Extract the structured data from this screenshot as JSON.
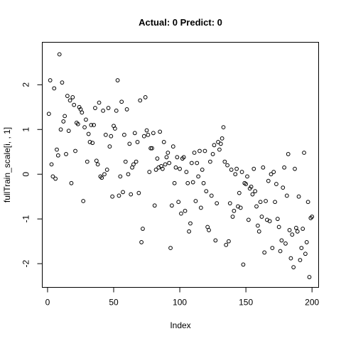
{
  "chart_data": {
    "type": "scatter",
    "title": "Actual: 0 Predict: 0",
    "xlabel": "Index",
    "ylabel": "fullTrain_scale[i, , 1]",
    "xlim": [
      -4,
      205
    ],
    "ylim": [
      -2.53,
      2.95
    ],
    "xticks": [
      0,
      50,
      100,
      150,
      200
    ],
    "yticks": [
      -2,
      -1,
      0,
      1,
      2
    ],
    "xtick_labels": [
      "0",
      "50",
      "100",
      "150",
      "200"
    ],
    "ytick_labels": [
      "-2",
      "-1",
      "0",
      "1",
      "2"
    ],
    "grid": false,
    "legend": "none",
    "marker": "open-circle",
    "points": [
      [
        1,
        1.35
      ],
      [
        2,
        2.1
      ],
      [
        3,
        0.22
      ],
      [
        4,
        -0.05
      ],
      [
        5,
        1.92
      ],
      [
        6,
        -0.1
      ],
      [
        7,
        0.55
      ],
      [
        8,
        0.42
      ],
      [
        9,
        2.68
      ],
      [
        10,
        1.0
      ],
      [
        11,
        2.05
      ],
      [
        12,
        1.18
      ],
      [
        13,
        1.3
      ],
      [
        14,
        0.45
      ],
      [
        15,
        1.75
      ],
      [
        16,
        0.97
      ],
      [
        17,
        1.65
      ],
      [
        18,
        -0.2
      ],
      [
        19,
        1.72
      ],
      [
        20,
        1.55
      ],
      [
        21,
        0.52
      ],
      [
        22,
        1.15
      ],
      [
        23,
        1.12
      ],
      [
        24,
        1.5
      ],
      [
        25,
        1.45
      ],
      [
        26,
        1.38
      ],
      [
        27,
        -0.6
      ],
      [
        28,
        1.05
      ],
      [
        29,
        1.22
      ],
      [
        30,
        0.28
      ],
      [
        31,
        0.9
      ],
      [
        32,
        0.72
      ],
      [
        33,
        1.1
      ],
      [
        34,
        0.7
      ],
      [
        35,
        1.1
      ],
      [
        36,
        1.48
      ],
      [
        37,
        0.3
      ],
      [
        38,
        0.22
      ],
      [
        39,
        1.6
      ],
      [
        40,
        -0.05
      ],
      [
        41,
        -0.08
      ],
      [
        42,
        1.42
      ],
      [
        43,
        0.0
      ],
      [
        44,
        0.88
      ],
      [
        45,
        0.1
      ],
      [
        46,
        1.48
      ],
      [
        47,
        0.62
      ],
      [
        48,
        0.85
      ],
      [
        49,
        -0.5
      ],
      [
        50,
        1.08
      ],
      [
        51,
        1.02
      ],
      [
        52,
        1.42
      ],
      [
        53,
        2.1
      ],
      [
        54,
        -0.48
      ],
      [
        55,
        -0.05
      ],
      [
        56,
        1.62
      ],
      [
        57,
        -0.4
      ],
      [
        58,
        0.88
      ],
      [
        59,
        0.28
      ],
      [
        60,
        1.45
      ],
      [
        61,
        0.0
      ],
      [
        62,
        0.68
      ],
      [
        63,
        -0.45
      ],
      [
        64,
        0.15
      ],
      [
        65,
        0.22
      ],
      [
        66,
        0.92
      ],
      [
        67,
        0.28
      ],
      [
        68,
        0.72
      ],
      [
        69,
        -0.42
      ],
      [
        70,
        1.65
      ],
      [
        71,
        -1.52
      ],
      [
        72,
        -1.22
      ],
      [
        73,
        0.85
      ],
      [
        74,
        1.72
      ],
      [
        75,
        0.98
      ],
      [
        76,
        0.88
      ],
      [
        77,
        0.05
      ],
      [
        78,
        0.58
      ],
      [
        79,
        0.58
      ],
      [
        80,
        0.92
      ],
      [
        81,
        -0.7
      ],
      [
        82,
        0.1
      ],
      [
        83,
        0.35
      ],
      [
        84,
        0.15
      ],
      [
        85,
        0.95
      ],
      [
        86,
        0.18
      ],
      [
        87,
        0.12
      ],
      [
        88,
        0.72
      ],
      [
        89,
        0.22
      ],
      [
        90,
        0.38
      ],
      [
        91,
        0.48
      ],
      [
        92,
        0.25
      ],
      [
        93,
        -1.65
      ],
      [
        94,
        -0.7
      ],
      [
        95,
        0.62
      ],
      [
        96,
        -0.2
      ],
      [
        97,
        0.15
      ],
      [
        98,
        0.38
      ],
      [
        99,
        -0.62
      ],
      [
        100,
        0.12
      ],
      [
        101,
        -0.88
      ],
      [
        102,
        0.35
      ],
      [
        103,
        0.38
      ],
      [
        104,
        -0.82
      ],
      [
        105,
        0.05
      ],
      [
        106,
        -0.2
      ],
      [
        107,
        -1.28
      ],
      [
        108,
        -1.1
      ],
      [
        109,
        0.25
      ],
      [
        110,
        -0.18
      ],
      [
        111,
        0.48
      ],
      [
        112,
        -0.6
      ],
      [
        113,
        0.25
      ],
      [
        114,
        -0.05
      ],
      [
        115,
        0.52
      ],
      [
        116,
        -0.75
      ],
      [
        117,
        0.1
      ],
      [
        118,
        -0.2
      ],
      [
        119,
        0.52
      ],
      [
        120,
        -0.38
      ],
      [
        121,
        -1.18
      ],
      [
        122,
        -1.25
      ],
      [
        123,
        0.28
      ],
      [
        124,
        -0.48
      ],
      [
        125,
        0.45
      ],
      [
        126,
        0.65
      ],
      [
        127,
        -1.48
      ],
      [
        128,
        -0.65
      ],
      [
        129,
        0.72
      ],
      [
        130,
        0.55
      ],
      [
        131,
        0.68
      ],
      [
        132,
        0.8
      ],
      [
        133,
        1.05
      ],
      [
        134,
        0.28
      ],
      [
        135,
        -1.58
      ],
      [
        136,
        0.2
      ],
      [
        137,
        -1.5
      ],
      [
        138,
        -0.65
      ],
      [
        139,
        0.1
      ],
      [
        140,
        -0.95
      ],
      [
        141,
        -0.82
      ],
      [
        142,
        0.0
      ],
      [
        143,
        0.12
      ],
      [
        144,
        -0.72
      ],
      [
        145,
        -0.42
      ],
      [
        146,
        -0.75
      ],
      [
        147,
        0.05
      ],
      [
        148,
        -2.02
      ],
      [
        149,
        -0.2
      ],
      [
        150,
        -0.22
      ],
      [
        151,
        -0.05
      ],
      [
        152,
        -1.02
      ],
      [
        153,
        -0.32
      ],
      [
        154,
        -0.28
      ],
      [
        155,
        -0.45
      ],
      [
        156,
        0.12
      ],
      [
        157,
        -0.38
      ],
      [
        158,
        -0.72
      ],
      [
        159,
        -1.15
      ],
      [
        160,
        -1.28
      ],
      [
        161,
        -0.62
      ],
      [
        162,
        -0.95
      ],
      [
        163,
        0.15
      ],
      [
        164,
        -1.75
      ],
      [
        165,
        -0.6
      ],
      [
        166,
        -1.02
      ],
      [
        167,
        -0.15
      ],
      [
        168,
        -1.05
      ],
      [
        169,
        0.0
      ],
      [
        170,
        -1.65
      ],
      [
        171,
        0.05
      ],
      [
        172,
        -0.62
      ],
      [
        173,
        -0.22
      ],
      [
        174,
        -1.0
      ],
      [
        175,
        -1.18
      ],
      [
        176,
        -1.72
      ],
      [
        177,
        -1.48
      ],
      [
        178,
        -0.3
      ],
      [
        179,
        0.15
      ],
      [
        180,
        -1.55
      ],
      [
        181,
        -0.48
      ],
      [
        182,
        0.45
      ],
      [
        183,
        -1.25
      ],
      [
        184,
        -1.88
      ],
      [
        185,
        -1.35
      ],
      [
        186,
        -2.08
      ],
      [
        187,
        0.12
      ],
      [
        188,
        -1.2
      ],
      [
        189,
        -1.28
      ],
      [
        190,
        -0.5
      ],
      [
        191,
        -1.92
      ],
      [
        192,
        -1.65
      ],
      [
        193,
        -1.22
      ],
      [
        194,
        0.48
      ],
      [
        195,
        -1.78
      ],
      [
        196,
        -1.52
      ],
      [
        197,
        -0.62
      ],
      [
        198,
        -2.3
      ],
      [
        199,
        -0.98
      ],
      [
        200,
        -0.95
      ]
    ]
  }
}
